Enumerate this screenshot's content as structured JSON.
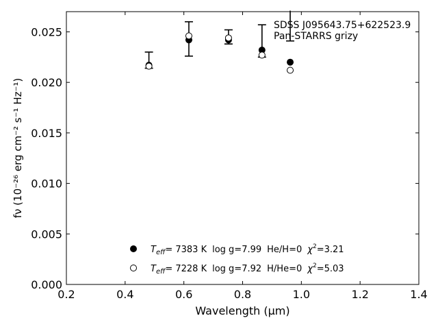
{
  "chart_data": {
    "type": "scatter",
    "xlabel": "Wavelength (μm)",
    "ylabel": "fν (10⁻²⁶ erg cm⁻² s⁻¹ Hz⁻¹)",
    "xlim": [
      0.2,
      1.4
    ],
    "ylim": [
      0.0,
      0.027
    ],
    "xticks": [
      "0.2",
      "0.4",
      "0.6",
      "0.8",
      "1.0",
      "1.2",
      "1.4"
    ],
    "yticks": [
      "0.000",
      "0.005",
      "0.010",
      "0.015",
      "0.020",
      "0.025"
    ],
    "grid": false,
    "annotation": {
      "line1": "SDSS J095643.75+622523.9",
      "line2": "Pan-STARRS grizy"
    },
    "observed": {
      "x": [
        0.481,
        0.617,
        0.752,
        0.866,
        0.962
      ],
      "y": [
        0.0222,
        0.0243,
        0.0245,
        0.0241,
        0.0287
      ],
      "yerr": [
        0.0008,
        0.0017,
        0.0007,
        0.0016,
        0.0046
      ]
    },
    "series": [
      {
        "marker": "filled-circle",
        "legend_text": "Teff= 7383 K log g=7.99 He/H=0 χ²=3.21",
        "x": [
          0.481,
          0.617,
          0.752,
          0.866,
          0.962
        ],
        "y": [
          0.0217,
          0.0242,
          0.0242,
          0.0232,
          0.022
        ]
      },
      {
        "marker": "open-circle",
        "legend_text": "Teff= 7228 K log g=7.92 H/He=0 χ²=5.03",
        "x": [
          0.481,
          0.617,
          0.752,
          0.866,
          0.962
        ],
        "y": [
          0.0216,
          0.0246,
          0.0244,
          0.0227,
          0.0212
        ]
      }
    ],
    "legend": {
      "placement": "bottom-center",
      "entries": [
        {
          "teff_label": "T",
          "teff_sub": "eff",
          "teff_value": "=  7383 K",
          "logg": "log g=7.99",
          "comp": "He/H=0",
          "chi_label": "χ",
          "chi_sup": "2",
          "chi_value": "=3.21"
        },
        {
          "teff_label": "T",
          "teff_sub": "eff",
          "teff_value": "=  7228 K",
          "logg": "log g=7.92",
          "comp": "H/He=0",
          "chi_label": "χ",
          "chi_sup": "2",
          "chi_value": "=5.03"
        }
      ]
    }
  }
}
